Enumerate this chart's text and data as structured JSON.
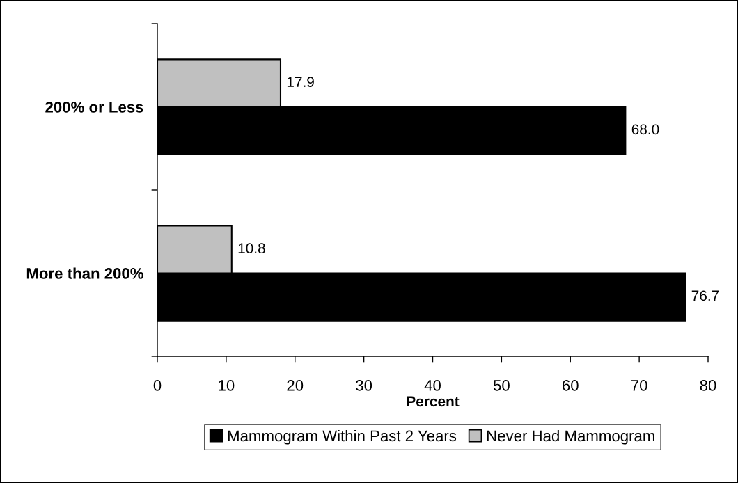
{
  "chart_data": {
    "type": "bar",
    "orientation": "horizontal",
    "categories": [
      "200% or Less",
      "More than 200%"
    ],
    "series": [
      {
        "name": "Mammogram Within Past 2 Years",
        "color": "#000000",
        "values": [
          68.0,
          76.7
        ],
        "value_labels": [
          "68.0",
          "76.7"
        ]
      },
      {
        "name": "Never Had Mammogram",
        "color": "#c0c0c0",
        "values": [
          17.9,
          10.8
        ],
        "value_labels": [
          "17.9",
          "10.8"
        ]
      }
    ],
    "xlabel": "Percent",
    "xlim": [
      0,
      80
    ],
    "xticks": [
      0,
      10,
      20,
      30,
      40,
      50,
      60,
      70,
      80
    ],
    "grid": false,
    "legend": "bottom"
  }
}
